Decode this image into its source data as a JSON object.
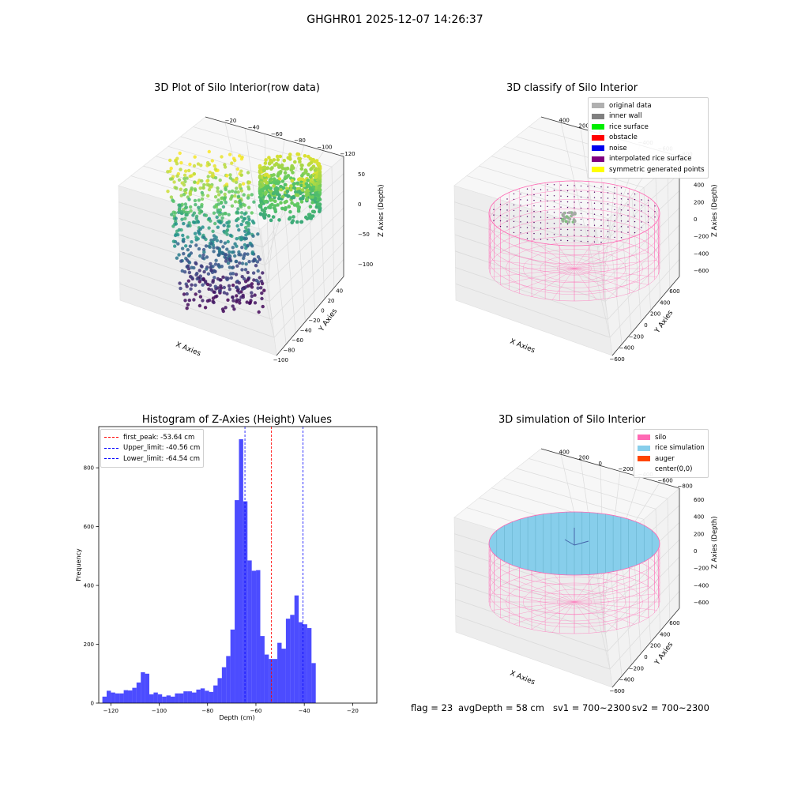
{
  "suptitle": "GHGHR01 2025-12-07 14:26:37",
  "panels": {
    "raw": {
      "title": "3D Plot of Silo Interior(row data)",
      "xlabel": "X Axies",
      "ylabel": "Y Axies",
      "zlabel": "Z Axies (Depth)",
      "xticks": [
        "−100",
        "−80",
        "−60",
        "−40",
        "−20",
        "0",
        "20",
        "40"
      ],
      "yticks": [
        "50",
        "0",
        "−50",
        "−100"
      ],
      "zticks": [
        "−20",
        "−40",
        "−60",
        "−80",
        "−100",
        "−120"
      ]
    },
    "classify": {
      "title": "3D classify of Silo Interior",
      "xlabel": "X Axies",
      "ylabel": "Y Axies",
      "zlabel": "Z Axies (Depth)",
      "xticks": [
        "−600",
        "−400",
        "−200",
        "0",
        "200",
        "400",
        "600"
      ],
      "yticks": [
        "600",
        "400",
        "200",
        "0",
        "−200",
        "−400",
        "−600"
      ],
      "zticks": [
        "400",
        "200",
        "0",
        "−200",
        "−400",
        "−600",
        "−800"
      ],
      "legend": [
        {
          "label": "original data",
          "color": "#b0b0b0"
        },
        {
          "label": "inner wall",
          "color": "#808080"
        },
        {
          "label": "rice surface",
          "color": "#00ee00"
        },
        {
          "label": "obstacle",
          "color": "#ff0000"
        },
        {
          "label": "noise",
          "color": "#0000ee"
        },
        {
          "label": "interpolated rice surface",
          "color": "#800080"
        },
        {
          "label": "symmetric generated points",
          "color": "#ffff00"
        }
      ]
    },
    "simulation": {
      "title": "3D simulation of Silo Interior",
      "xlabel": "X Axies",
      "ylabel": "Y Axies",
      "zlabel": "Z Axies (Depth)",
      "xticks": [
        "−600",
        "−400",
        "−200",
        "0",
        "200",
        "400",
        "600"
      ],
      "yticks": [
        "600",
        "400",
        "200",
        "0",
        "−200",
        "−400",
        "−600"
      ],
      "zticks": [
        "400",
        "200",
        "0",
        "−200",
        "−400",
        "−600",
        "−800"
      ],
      "legend": [
        {
          "label": "silo",
          "color": "#ff69b4"
        },
        {
          "label": "rice simulation",
          "color": "#87ceeb"
        },
        {
          "label": "auger",
          "color": "#ff4500"
        },
        {
          "label": "center(0,0)",
          "color": ""
        }
      ]
    }
  },
  "chart_data": {
    "type": "bar",
    "title": "Histogram of Z-Axies (Height) Values",
    "xlabel": "Depth (cm)",
    "ylabel": "Frequency",
    "xlim": [
      -125,
      -10
    ],
    "ylim": [
      0,
      940
    ],
    "xticks": [
      -120,
      -100,
      -80,
      -60,
      -40,
      -20
    ],
    "yticks": [
      0,
      200,
      400,
      600,
      800
    ],
    "bar_color": "#0000ff",
    "bin_edges_start": -123.5,
    "bin_width": 1.765,
    "values": [
      22,
      42,
      36,
      33,
      33,
      44,
      43,
      52,
      70,
      105,
      100,
      30,
      36,
      30,
      22,
      26,
      22,
      33,
      33,
      40,
      40,
      36,
      46,
      50,
      42,
      38,
      60,
      85,
      122,
      160,
      250,
      690,
      897,
      686,
      485,
      450,
      452,
      228,
      165,
      150,
      150,
      205,
      185,
      287,
      300,
      366,
      275,
      268,
      255,
      136
    ],
    "vlines": [
      {
        "label": "first_peak: -53.64 cm",
        "x": -53.64,
        "color": "#ff0000"
      },
      {
        "label": "Upper_limit: -40.56 cm",
        "x": -40.56,
        "color": "#0000ff"
      },
      {
        "label": "Lower_limit: -64.54 cm",
        "x": -64.54,
        "color": "#0000ff"
      }
    ]
  },
  "footer": {
    "flag": "flag = 23",
    "avg": "avgDepth = 58 cm",
    "sv1": "sv1 = 700~2300",
    "sv2": "sv2 = 700~2300"
  }
}
